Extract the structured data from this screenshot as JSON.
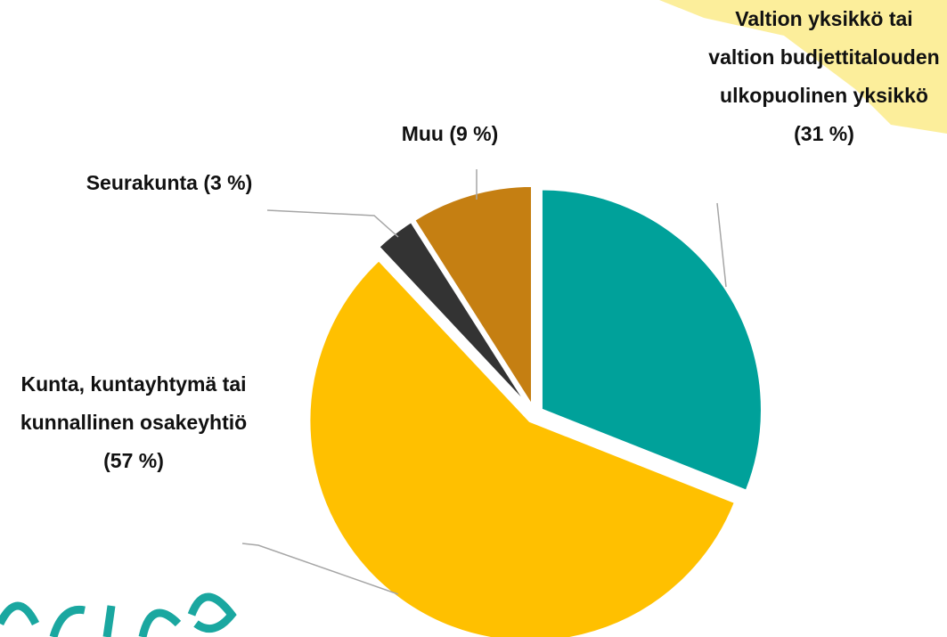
{
  "chart_data": {
    "type": "pie",
    "categories": [
      "Valtion yksikkö tai valtion budjettitalouden ulkopuolinen yksikkö (31 %)",
      "Kunta, kuntayhtymä tai kunnallinen osakeyhtiö (57 %)",
      "Seurakunta (3 %)",
      "Muu (9 %)"
    ],
    "values": [
      31,
      57,
      3,
      9
    ],
    "colors": [
      "#00a19a",
      "#ffc000",
      "#333333",
      "#c57f12"
    ]
  }
}
